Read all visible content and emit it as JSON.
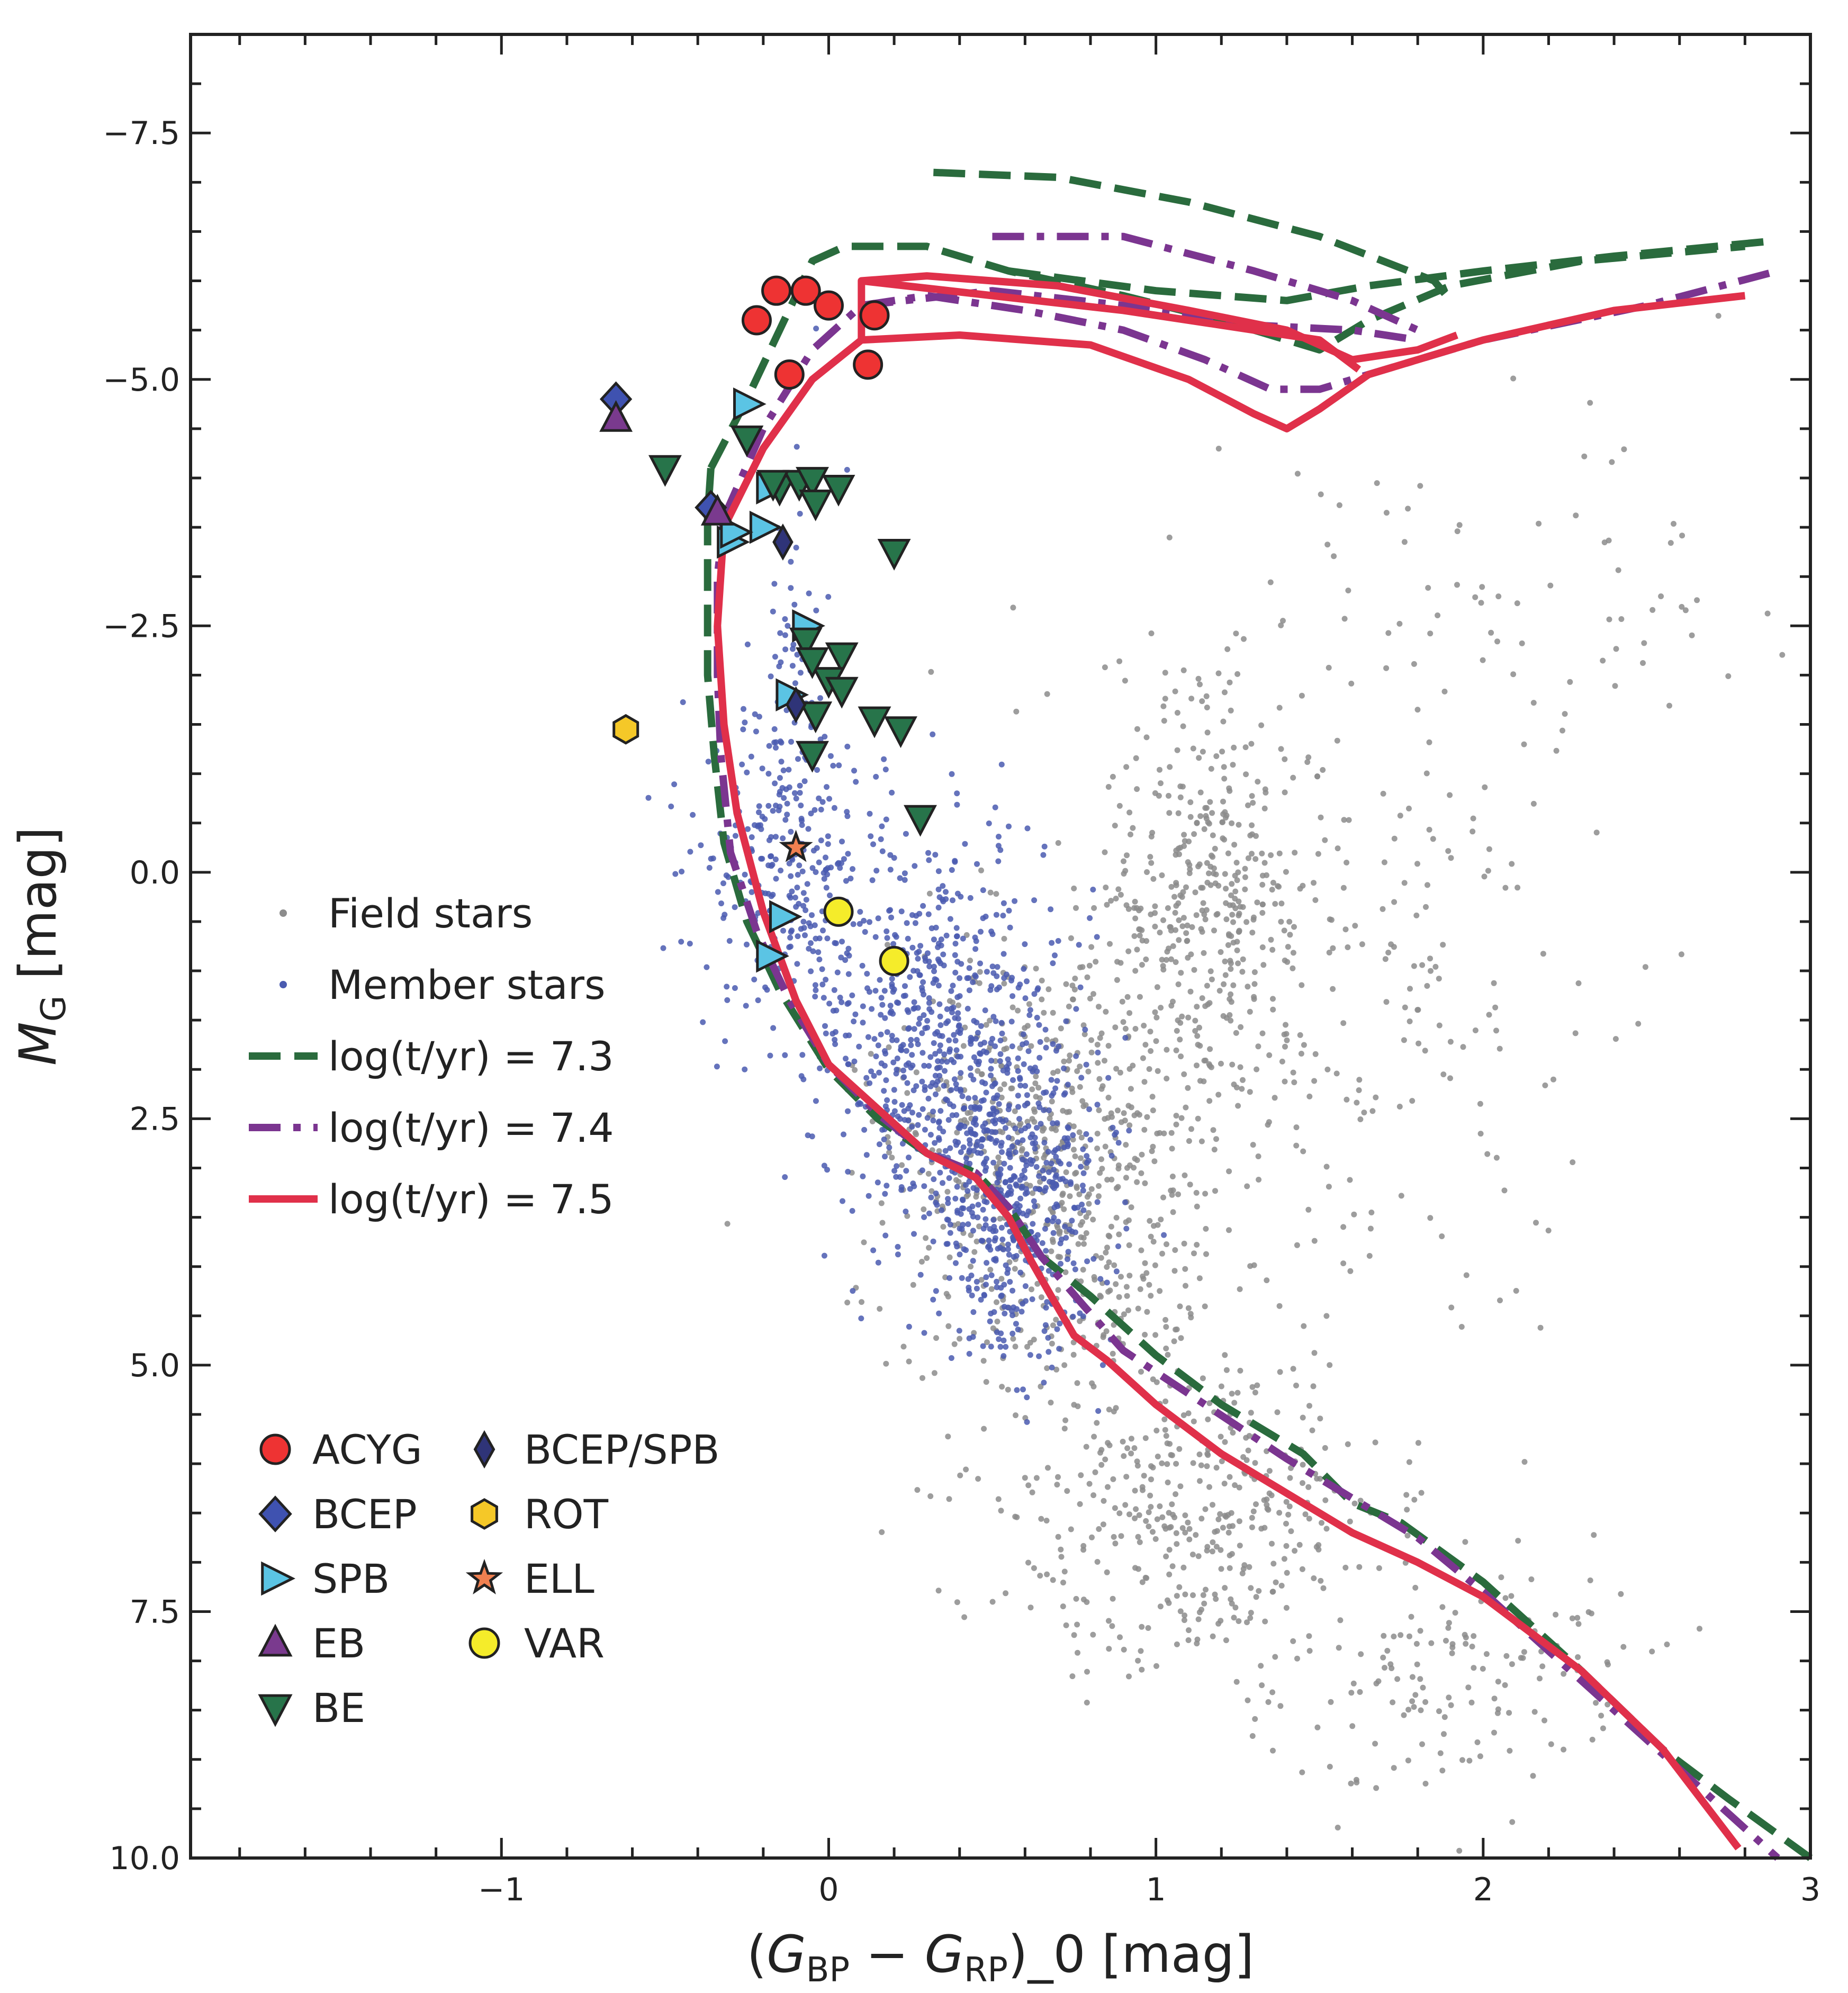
{
  "chart_data": {
    "type": "scatter",
    "title": "",
    "xlabel": "(G_BP − G_RP)_0 [mag]",
    "ylabel": "M_G [mag]",
    "xlim": [
      -1.95,
      3.0
    ],
    "ylim": [
      10.0,
      -8.5
    ],
    "y_inverted": true,
    "grid": false,
    "x_ticks": [
      {
        "value": -1,
        "label": "−1"
      },
      {
        "value": 0,
        "label": "0"
      },
      {
        "value": 1,
        "label": "1"
      },
      {
        "value": 2,
        "label": "2"
      },
      {
        "value": 3,
        "label": "3"
      }
    ],
    "y_ticks": [
      {
        "value": -7.5,
        "label": "−7.5"
      },
      {
        "value": -5.0,
        "label": "−5.0"
      },
      {
        "value": -2.5,
        "label": "−2.5"
      },
      {
        "value": 0.0,
        "label": "0.0"
      },
      {
        "value": 2.5,
        "label": "2.5"
      },
      {
        "value": 5.0,
        "label": "5.0"
      },
      {
        "value": 7.5,
        "label": "7.5"
      },
      {
        "value": 10.0,
        "label": "10.0"
      }
    ],
    "legend_placement": "left",
    "legend_top": [
      {
        "label": "Field stars",
        "kind": "dot",
        "color": "#8c8c8c"
      },
      {
        "label": "Member stars",
        "kind": "dot",
        "color": "#4a5bb0"
      },
      {
        "label": "log(t/yr) = 7.3",
        "kind": "line",
        "color": "#2a6b3d",
        "dash": "dashed"
      },
      {
        "label": "log(t/yr) = 7.4",
        "kind": "line",
        "color": "#7b3590",
        "dash": "dashdot"
      },
      {
        "label": "log(t/yr) = 7.5",
        "kind": "line",
        "color": "#e0304a",
        "dash": "solid"
      }
    ],
    "legend_bottom": [
      {
        "label": "ACYG",
        "marker": "circle",
        "color": "#ee3333"
      },
      {
        "label": "BCEP",
        "marker": "diamond",
        "color": "#3f52b0"
      },
      {
        "label": "SPB",
        "marker": "triangle-right",
        "color": "#5bc4e4"
      },
      {
        "label": "EB",
        "marker": "triangle-up",
        "color": "#7a3a8e"
      },
      {
        "label": "BE",
        "marker": "triangle-down",
        "color": "#27744a"
      },
      {
        "label": "BCEP/SPB",
        "marker": "thin-diamond",
        "color": "#2f3478"
      },
      {
        "label": "ROT",
        "marker": "hexagon",
        "color": "#f5c828"
      },
      {
        "label": "ELL",
        "marker": "star",
        "color": "#f08050"
      },
      {
        "label": "VAR",
        "marker": "circle",
        "color": "#f5ec2a"
      }
    ],
    "field_stars": {
      "approx_count": 2000,
      "color": "#8c8c8c",
      "clumps": [
        {
          "x": 0.7,
          "y": 3.0,
          "sx": 0.25,
          "sy": 1.2,
          "n": 700
        },
        {
          "x": 1.1,
          "y": 6.5,
          "sx": 0.3,
          "sy": 0.8,
          "n": 400
        },
        {
          "x": 1.15,
          "y": 0.3,
          "sx": 0.15,
          "sy": 1.0,
          "n": 350
        },
        {
          "x": 1.6,
          "y": 1.0,
          "sx": 0.35,
          "sy": 2.0,
          "n": 250
        },
        {
          "x": 1.9,
          "y": 8.2,
          "sx": 0.3,
          "sy": 0.6,
          "n": 150
        },
        {
          "x": 2.2,
          "y": -3.0,
          "sx": 0.4,
          "sy": 1.0,
          "n": 60
        }
      ]
    },
    "member_stars": {
      "approx_count": 1500,
      "color": "#4a5bb0",
      "clumps": [
        {
          "x": 0.3,
          "y": 1.5,
          "sx": 0.2,
          "sy": 1.0,
          "n": 600
        },
        {
          "x": 0.55,
          "y": 3.2,
          "sx": 0.15,
          "sy": 0.8,
          "n": 550
        },
        {
          "x": -0.15,
          "y": -0.1,
          "sx": 0.12,
          "sy": 0.7,
          "n": 250
        },
        {
          "x": -0.1,
          "y": -2.0,
          "sx": 0.06,
          "sy": 1.0,
          "n": 60
        }
      ]
    },
    "isochrones": [
      {
        "name": "log(t/yr) = 7.3",
        "color": "#2a6b3d",
        "dash": "dashed",
        "points": [
          [
            -0.36,
            -4.1
          ],
          [
            -0.37,
            -3.6
          ],
          [
            -0.37,
            -3.0
          ],
          [
            -0.37,
            -2.0
          ],
          [
            -0.35,
            -1.2
          ],
          [
            -0.32,
            -0.3
          ],
          [
            -0.25,
            0.5
          ],
          [
            -0.15,
            1.2
          ],
          [
            0.0,
            2.0
          ],
          [
            0.15,
            2.5
          ],
          [
            0.3,
            2.85
          ],
          [
            0.45,
            3.05
          ],
          [
            0.55,
            3.4
          ],
          [
            0.65,
            3.9
          ],
          [
            0.8,
            4.3
          ],
          [
            1.0,
            4.9
          ],
          [
            1.2,
            5.4
          ],
          [
            1.45,
            5.9
          ],
          [
            1.6,
            6.4
          ],
          [
            1.75,
            6.6
          ],
          [
            2.0,
            7.2
          ],
          [
            2.3,
            8.1
          ],
          [
            2.55,
            8.9
          ],
          [
            2.75,
            9.4
          ],
          [
            3.0,
            10.0
          ]
        ],
        "branches": [
          [
            [
              -0.36,
              -4.1
            ],
            [
              -0.25,
              -4.8
            ],
            [
              -0.15,
              -5.5
            ],
            [
              -0.05,
              -6.2
            ],
            [
              0.05,
              -6.35
            ],
            [
              0.3,
              -6.35
            ],
            [
              0.55,
              -6.1
            ],
            [
              0.9,
              -5.85
            ],
            [
              1.2,
              -5.6
            ],
            [
              1.5,
              -5.3
            ],
            [
              1.65,
              -5.6
            ],
            [
              1.9,
              -5.95
            ],
            [
              2.3,
              -6.2
            ],
            [
              2.8,
              -6.35
            ]
          ],
          [
            [
              0.55,
              -6.1
            ],
            [
              1.0,
              -5.9
            ],
            [
              1.4,
              -5.8
            ],
            [
              1.65,
              -5.95
            ],
            [
              2.0,
              -6.1
            ],
            [
              2.4,
              -6.25
            ],
            [
              2.87,
              -6.4
            ]
          ],
          [
            [
              0.32,
              -7.1
            ],
            [
              0.7,
              -7.05
            ],
            [
              1.1,
              -6.8
            ],
            [
              1.5,
              -6.45
            ],
            [
              1.85,
              -6.0
            ],
            [
              1.9,
              -5.8
            ]
          ]
        ]
      },
      {
        "name": "log(t/yr) = 7.4",
        "color": "#7b3590",
        "dash": "dashdot",
        "points": [
          [
            -0.32,
            -3.6
          ],
          [
            -0.34,
            -3.0
          ],
          [
            -0.34,
            -2.0
          ],
          [
            -0.33,
            -1.2
          ],
          [
            -0.3,
            -0.2
          ],
          [
            -0.22,
            0.6
          ],
          [
            -0.12,
            1.3
          ],
          [
            0.0,
            1.95
          ],
          [
            0.15,
            2.45
          ],
          [
            0.3,
            2.85
          ],
          [
            0.45,
            3.05
          ],
          [
            0.55,
            3.4
          ],
          [
            0.65,
            3.9
          ],
          [
            0.78,
            4.4
          ],
          [
            0.9,
            4.85
          ],
          [
            1.15,
            5.4
          ],
          [
            1.4,
            5.95
          ],
          [
            1.6,
            6.35
          ],
          [
            1.8,
            6.75
          ],
          [
            2.0,
            7.3
          ],
          [
            2.3,
            8.2
          ],
          [
            2.6,
            9.1
          ],
          [
            2.9,
            10.0
          ]
        ],
        "branches": [
          [
            [
              -0.32,
              -3.6
            ],
            [
              -0.2,
              -4.5
            ],
            [
              -0.05,
              -5.3
            ],
            [
              0.1,
              -5.75
            ],
            [
              0.3,
              -5.85
            ],
            [
              0.6,
              -5.7
            ],
            [
              0.9,
              -5.5
            ],
            [
              1.15,
              -5.2
            ],
            [
              1.35,
              -4.9
            ],
            [
              1.5,
              -4.9
            ],
            [
              1.7,
              -5.1
            ],
            [
              2.0,
              -5.4
            ],
            [
              2.5,
              -5.75
            ],
            [
              2.9,
              -6.1
            ]
          ],
          [
            [
              0.1,
              -5.75
            ],
            [
              0.5,
              -5.9
            ],
            [
              0.9,
              -5.75
            ],
            [
              1.3,
              -5.55
            ],
            [
              1.6,
              -5.5
            ],
            [
              1.8,
              -5.4
            ]
          ],
          [
            [
              0.5,
              -6.45
            ],
            [
              0.9,
              -6.45
            ],
            [
              1.3,
              -6.1
            ],
            [
              1.6,
              -5.8
            ],
            [
              1.8,
              -5.5
            ]
          ]
        ]
      },
      {
        "name": "log(t/yr) = 7.5",
        "color": "#e0304a",
        "dash": "solid",
        "points": [
          [
            -0.32,
            -3.5
          ],
          [
            -0.34,
            -2.5
          ],
          [
            -0.32,
            -1.5
          ],
          [
            -0.28,
            -0.6
          ],
          [
            -0.2,
            0.4
          ],
          [
            -0.1,
            1.3
          ],
          [
            0.0,
            1.95
          ],
          [
            0.15,
            2.4
          ],
          [
            0.3,
            2.85
          ],
          [
            0.45,
            3.1
          ],
          [
            0.55,
            3.5
          ],
          [
            0.62,
            3.95
          ],
          [
            0.68,
            4.3
          ],
          [
            0.75,
            4.7
          ],
          [
            0.85,
            4.95
          ],
          [
            1.0,
            5.4
          ],
          [
            1.2,
            5.9
          ],
          [
            1.4,
            6.3
          ],
          [
            1.6,
            6.7
          ],
          [
            1.8,
            7.0
          ],
          [
            2.0,
            7.35
          ],
          [
            2.3,
            8.1
          ],
          [
            2.55,
            8.9
          ],
          [
            2.78,
            9.9
          ]
        ],
        "branches": [
          [
            [
              -0.32,
              -3.5
            ],
            [
              -0.2,
              -4.3
            ],
            [
              -0.05,
              -5.0
            ],
            [
              0.1,
              -5.4
            ],
            [
              0.4,
              -5.45
            ],
            [
              0.8,
              -5.35
            ],
            [
              1.1,
              -5.0
            ],
            [
              1.3,
              -4.65
            ],
            [
              1.4,
              -4.5
            ],
            [
              1.5,
              -4.7
            ],
            [
              1.65,
              -5.05
            ],
            [
              2.0,
              -5.4
            ],
            [
              2.4,
              -5.7
            ],
            [
              2.8,
              -5.85
            ]
          ],
          [
            [
              0.1,
              -5.4
            ],
            [
              0.1,
              -6.0
            ],
            [
              0.3,
              -6.05
            ],
            [
              0.7,
              -5.95
            ],
            [
              1.1,
              -5.7
            ],
            [
              1.4,
              -5.5
            ],
            [
              1.6,
              -5.2
            ],
            [
              1.8,
              -5.3
            ],
            [
              1.92,
              -5.45
            ]
          ],
          [
            [
              0.1,
              -6.0
            ],
            [
              0.5,
              -5.85
            ],
            [
              0.9,
              -5.7
            ],
            [
              1.2,
              -5.55
            ],
            [
              1.5,
              -5.4
            ],
            [
              1.62,
              -5.1
            ]
          ]
        ]
      }
    ],
    "variable_types": [
      {
        "type": "ACYG",
        "points": [
          [
            -0.22,
            -5.6
          ],
          [
            -0.16,
            -5.9
          ],
          [
            -0.07,
            -5.9
          ],
          [
            0.0,
            -5.75
          ],
          [
            0.14,
            -5.65
          ],
          [
            -0.12,
            -5.05
          ],
          [
            0.12,
            -5.15
          ]
        ]
      },
      {
        "type": "BCEP",
        "points": [
          [
            -0.65,
            -4.8
          ],
          [
            -0.36,
            -3.7
          ]
        ]
      },
      {
        "type": "SPB",
        "points": [
          [
            -0.25,
            -4.75
          ],
          [
            -0.3,
            -3.35
          ],
          [
            -0.2,
            -3.5
          ],
          [
            -0.18,
            -3.9
          ],
          [
            -0.07,
            -2.5
          ],
          [
            -0.12,
            -1.8
          ],
          [
            -0.18,
            0.85
          ],
          [
            -0.14,
            0.45
          ],
          [
            -0.29,
            -3.45
          ]
        ]
      },
      {
        "type": "EB",
        "points": [
          [
            -0.65,
            -4.6
          ],
          [
            -0.34,
            -3.65
          ]
        ]
      },
      {
        "type": "BE",
        "points": [
          [
            -0.5,
            -4.1
          ],
          [
            -0.25,
            -4.4
          ],
          [
            -0.15,
            -3.9
          ],
          [
            -0.09,
            -3.95
          ],
          [
            -0.05,
            -3.98
          ],
          [
            -0.04,
            -3.75
          ],
          [
            0.03,
            -3.9
          ],
          [
            0.2,
            -3.25
          ],
          [
            -0.07,
            -2.35
          ],
          [
            0.04,
            -2.2
          ],
          [
            0.0,
            -1.95
          ],
          [
            0.04,
            -1.85
          ],
          [
            -0.04,
            -1.6
          ],
          [
            -0.05,
            -1.2
          ],
          [
            0.14,
            -1.55
          ],
          [
            0.22,
            -1.45
          ],
          [
            0.28,
            -0.55
          ],
          [
            -0.17,
            -3.95
          ],
          [
            -0.05,
            -2.15
          ]
        ]
      },
      {
        "type": "BCEP/SPB",
        "points": [
          [
            -0.14,
            -3.35
          ],
          [
            -0.1,
            -1.7
          ]
        ]
      },
      {
        "type": "ROT",
        "points": [
          [
            -0.62,
            -1.45
          ]
        ]
      },
      {
        "type": "ELL",
        "points": [
          [
            -0.1,
            -0.25
          ]
        ]
      },
      {
        "type": "VAR",
        "points": [
          [
            0.03,
            0.4
          ],
          [
            0.2,
            0.9
          ]
        ]
      }
    ]
  }
}
